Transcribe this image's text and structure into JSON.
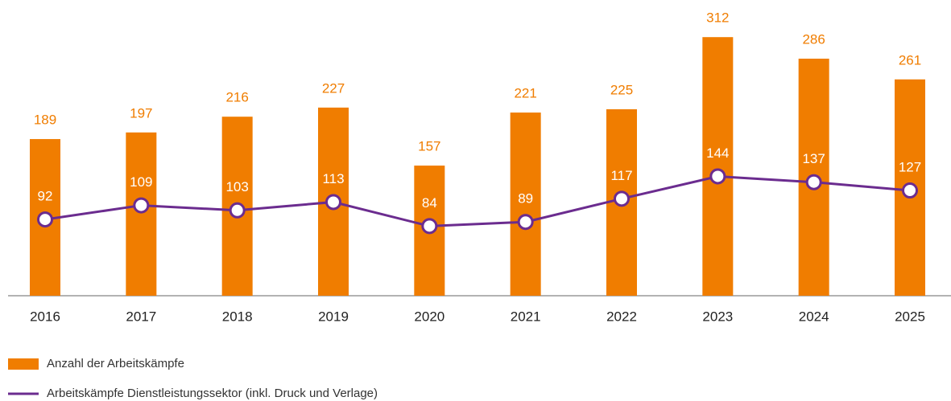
{
  "chart_data": {
    "type": "combo",
    "categories": [
      "2016",
      "2017",
      "2018",
      "2019",
      "2020",
      "2021",
      "2022",
      "2023",
      "2024",
      "2025"
    ],
    "series": [
      {
        "name": "Anzahl der Arbeitskämpfe",
        "type": "bar",
        "color": "#f07d00",
        "values": [
          189,
          197,
          216,
          227,
          157,
          221,
          225,
          312,
          286,
          261
        ]
      },
      {
        "name": "Arbeitskämpfe Dienstleistungssektor (inkl. Druck und Verlage)",
        "type": "line",
        "color": "#6b2c8f",
        "values": [
          92,
          109,
          103,
          113,
          84,
          89,
          117,
          144,
          137,
          127
        ]
      }
    ],
    "ylim": [
      0,
      350
    ]
  }
}
